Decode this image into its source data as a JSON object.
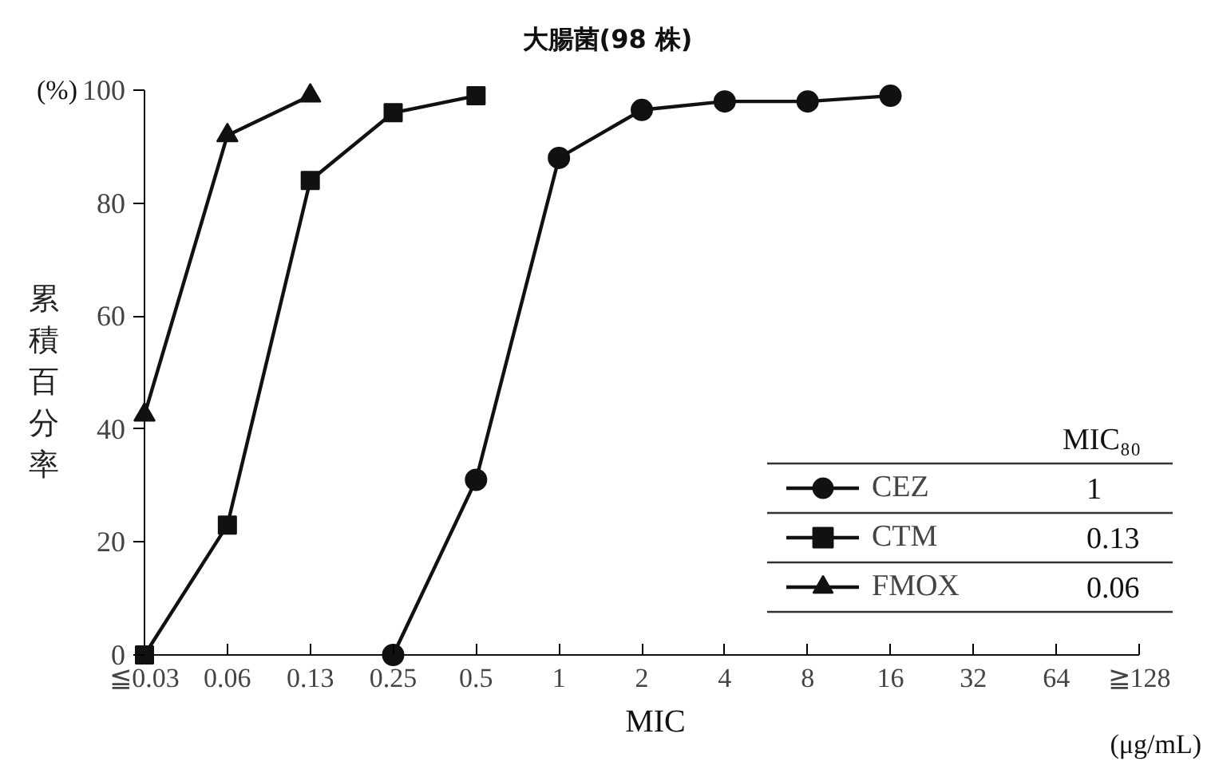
{
  "chart_data": {
    "type": "line",
    "title": "大腸菌(98 株)",
    "xlabel": "MIC",
    "ylabel": "累積百分率",
    "categories": [
      "≦0.03",
      "0.06",
      "0.13",
      "0.25",
      "0.5",
      "1",
      "2",
      "4",
      "8",
      "16",
      "32",
      "64",
      "≧128"
    ],
    "series": [
      {
        "name": "CEZ",
        "color": "#111111",
        "marker": "circle",
        "values": [
          null,
          null,
          null,
          0,
          31,
          88,
          96.5,
          98,
          98,
          99,
          null,
          null,
          null
        ]
      },
      {
        "name": "CTM",
        "color": "#111111",
        "marker": "square",
        "values": [
          0,
          23,
          84,
          96,
          99,
          null,
          null,
          null,
          null,
          null,
          null,
          null,
          null
        ]
      },
      {
        "name": "FMOX",
        "color": "#111111",
        "marker": "triangle",
        "values": [
          42.5,
          92,
          99,
          null,
          null,
          null,
          null,
          null,
          null,
          null,
          null,
          null,
          null
        ]
      }
    ],
    "ylim": [
      0,
      100
    ],
    "yticks": [
      0,
      20,
      40,
      60,
      80,
      100
    ],
    "grid": false,
    "legend": "bottom right",
    "line_style": "solid",
    "annotations": [
      "MIC₈₀",
      "1",
      "0.13",
      "0.06",
      "(%)",
      "(μg/mL)"
    ]
  }
}
